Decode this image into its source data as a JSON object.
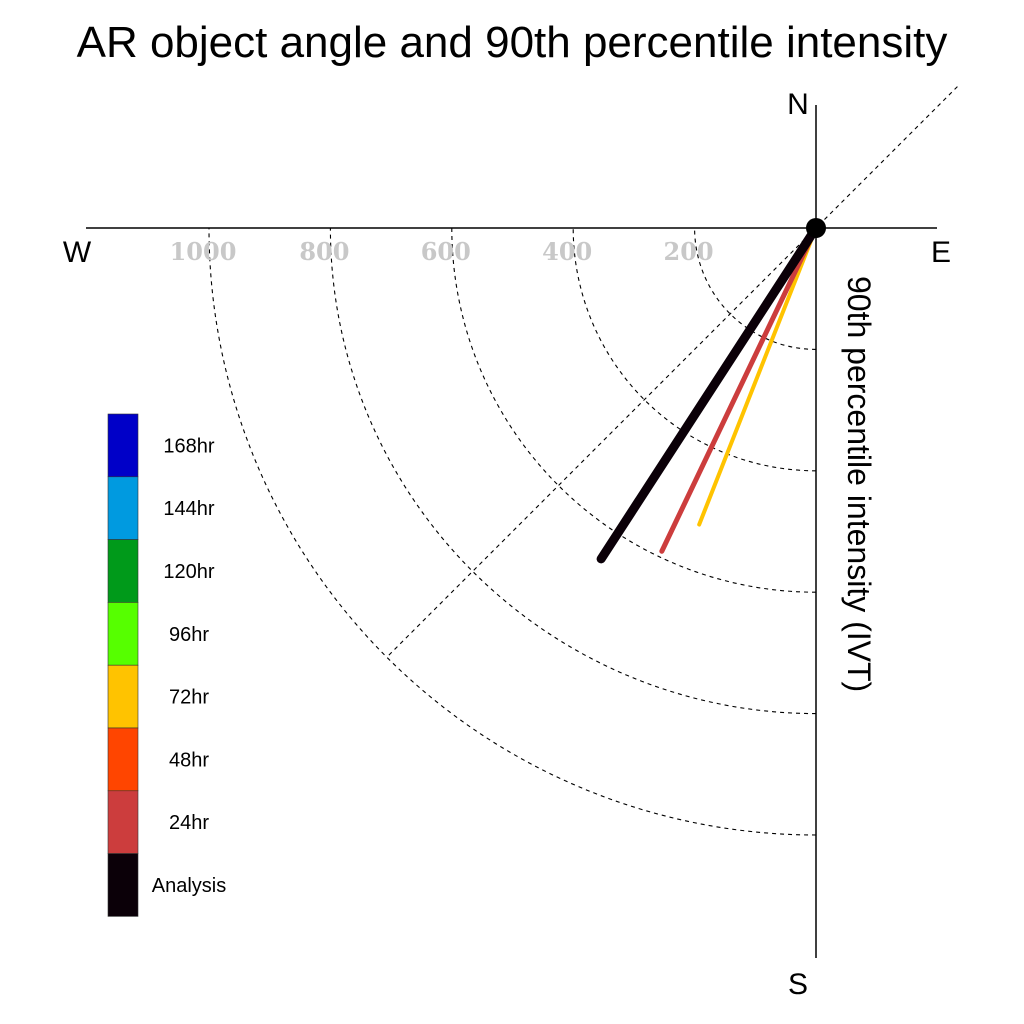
{
  "chart_data": {
    "type": "polar-line",
    "title": "AR object angle and 90th percentile intensity",
    "ylabel": "90th percentile intensity (IVT)",
    "compass": {
      "north": "N",
      "south": "S",
      "east": "E",
      "west": "W"
    },
    "radial_ticks": [
      200,
      400,
      600,
      800,
      1000
    ],
    "radial_tick_labels": [
      "200",
      "400",
      "600",
      "800",
      "1000"
    ],
    "rlim": [
      0,
      1000
    ],
    "grid": true,
    "series": [
      {
        "name": "72hr",
        "angle_deg": 201.5,
        "intensity": 525,
        "color": "#ffc300",
        "stroke_width": 4
      },
      {
        "name": "24hr",
        "angle_deg": 205.5,
        "intensity": 590,
        "color": "#cc3d3d",
        "stroke_width": 5
      },
      {
        "name": "Analysis",
        "angle_deg": 213,
        "intensity": 650,
        "color": "#0b0008",
        "stroke_width": 9
      }
    ],
    "legend": {
      "placement": "left",
      "entries": [
        {
          "label": "168hr",
          "color": "#0000c8"
        },
        {
          "label": "144hr",
          "color": "#009ae0"
        },
        {
          "label": "120hr",
          "color": "#009a1a"
        },
        {
          "label": "96hr",
          "color": "#56ff00"
        },
        {
          "label": "72hr",
          "color": "#ffc300"
        },
        {
          "label": "48hr",
          "color": "#ff4500"
        },
        {
          "label": "24hr",
          "color": "#cc3d3d"
        },
        {
          "label": "Analysis",
          "color": "#0b0008"
        }
      ]
    }
  }
}
